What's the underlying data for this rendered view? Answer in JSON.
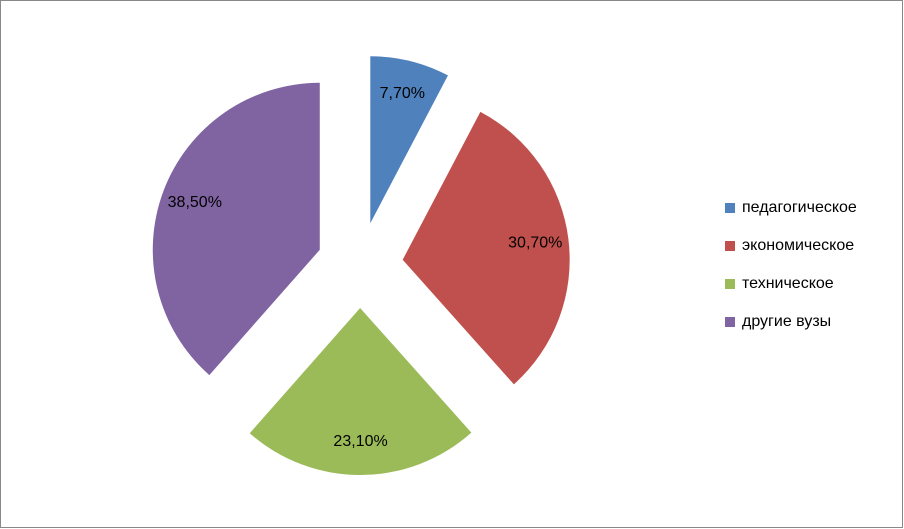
{
  "chart_data": {
    "type": "pie",
    "categories": [
      "педагогическое",
      "экономическое",
      "техническое",
      "другие вузы"
    ],
    "values": [
      7.7,
      30.7,
      23.1,
      38.5
    ],
    "value_labels": [
      "7,70%",
      "30,70%",
      "23,10%",
      "38,50%"
    ],
    "colors": [
      "#4f81bd",
      "#c0504d",
      "#9bbb59",
      "#8064a2"
    ],
    "legend": "right"
  }
}
